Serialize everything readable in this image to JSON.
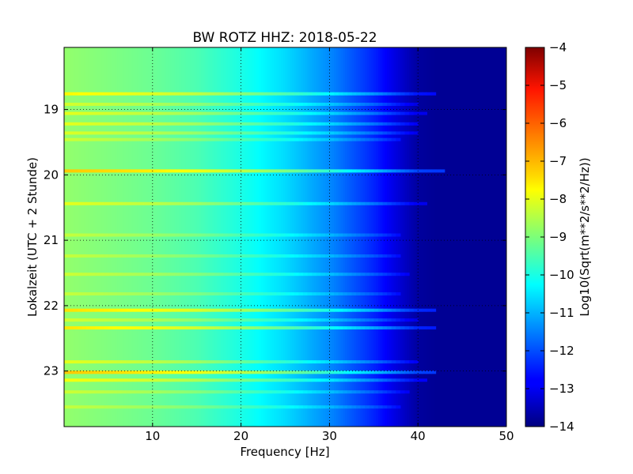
{
  "chart_data": {
    "type": "heatmap",
    "title": "BW ROTZ HHZ: 2018-05-22",
    "xlabel": "Frequency [Hz]",
    "ylabel": "Lokalzeit (UTC + 2 Stunde)",
    "xlim": [
      0,
      50
    ],
    "ylim": [
      23.85,
      18.05
    ],
    "x_ticks": [
      10,
      20,
      30,
      40,
      50
    ],
    "y_ticks": [
      19,
      20,
      21,
      22,
      23
    ],
    "grid": true,
    "colormap": "jet",
    "colorbar": {
      "label": "Log10(Sqrt(m**2/s**2/Hz))",
      "range": [
        -14,
        -4
      ],
      "ticks": [
        -4,
        -5,
        -6,
        -7,
        -8,
        -9,
        -10,
        -11,
        -12,
        -13,
        -14
      ]
    },
    "background_profile": {
      "frequency": [
        0,
        5,
        10,
        15,
        20,
        25,
        30,
        35,
        38,
        40,
        42,
        50
      ],
      "level": [
        -8.8,
        -9.0,
        -9.2,
        -9.5,
        -10.0,
        -10.6,
        -11.4,
        -12.4,
        -13.2,
        -13.7,
        -13.8,
        -13.8
      ]
    },
    "bands": [
      {
        "time": 18.76,
        "strength": 0.7,
        "fmax": 42
      },
      {
        "time": 18.92,
        "strength": 0.4,
        "fmax": 40
      },
      {
        "time": 19.06,
        "strength": 0.5,
        "fmax": 41
      },
      {
        "time": 19.22,
        "strength": 0.5,
        "fmax": 40
      },
      {
        "time": 19.36,
        "strength": 0.45,
        "fmax": 40
      },
      {
        "time": 19.46,
        "strength": 0.35,
        "fmax": 38
      },
      {
        "time": 19.94,
        "strength": 1.0,
        "fmax": 43
      },
      {
        "time": 20.44,
        "strength": 0.5,
        "fmax": 41
      },
      {
        "time": 20.92,
        "strength": 0.3,
        "fmax": 38
      },
      {
        "time": 21.24,
        "strength": 0.3,
        "fmax": 38
      },
      {
        "time": 21.52,
        "strength": 0.35,
        "fmax": 39
      },
      {
        "time": 21.82,
        "strength": 0.3,
        "fmax": 38
      },
      {
        "time": 22.07,
        "strength": 0.85,
        "fmax": 42
      },
      {
        "time": 22.22,
        "strength": 0.4,
        "fmax": 40
      },
      {
        "time": 22.34,
        "strength": 0.8,
        "fmax": 42
      },
      {
        "time": 22.86,
        "strength": 0.5,
        "fmax": 40
      },
      {
        "time": 23.02,
        "strength": 1.0,
        "fmax": 42
      },
      {
        "time": 23.14,
        "strength": 0.6,
        "fmax": 41
      },
      {
        "time": 23.32,
        "strength": 0.35,
        "fmax": 39
      },
      {
        "time": 23.55,
        "strength": 0.3,
        "fmax": 38
      }
    ]
  }
}
